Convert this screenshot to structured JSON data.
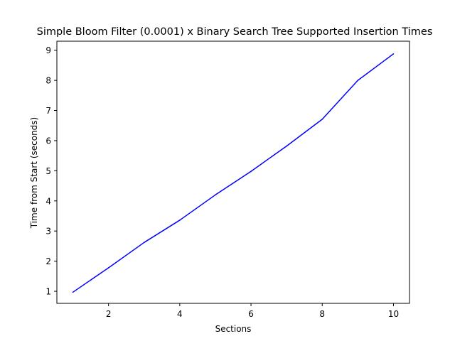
{
  "chart_data": {
    "type": "line",
    "title": "Simple Bloom Filter (0.0001) x Binary Search Tree Supported Insertion Times",
    "xlabel": "Sections",
    "ylabel": "Time from Start (seconds)",
    "xlim": [
      0.55,
      10.45
    ],
    "ylim": [
      0.6,
      9.3
    ],
    "x_ticks": [
      2,
      4,
      6,
      8,
      10
    ],
    "y_ticks": [
      1,
      2,
      3,
      4,
      5,
      6,
      7,
      8,
      9
    ],
    "grid": false,
    "legend": "none",
    "series": [
      {
        "color": "#0000ff",
        "x": [
          1,
          2,
          3,
          4,
          5,
          6,
          7,
          8,
          9,
          10
        ],
        "y": [
          0.97,
          1.78,
          2.62,
          3.36,
          4.2,
          4.98,
          5.82,
          6.71,
          8.0,
          8.88
        ]
      }
    ]
  }
}
